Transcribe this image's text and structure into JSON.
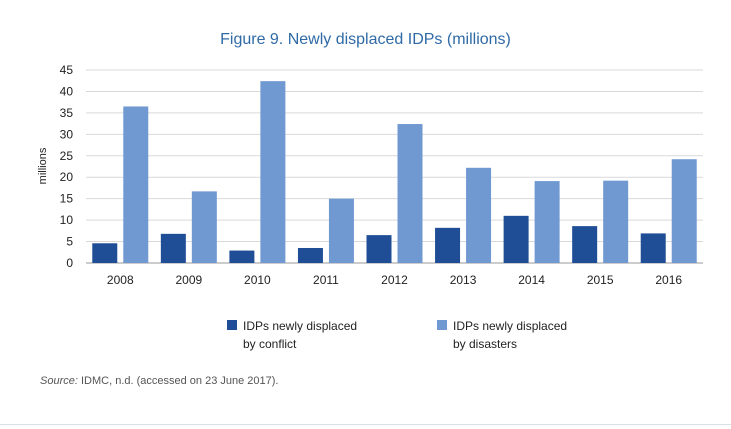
{
  "chart_data": {
    "type": "bar",
    "title": "Figure 9. Newly displaced IDPs (millions)",
    "ylabel": "millions",
    "xlabel": "",
    "ylim": [
      0,
      45
    ],
    "yticks": [
      0,
      5,
      10,
      15,
      20,
      25,
      30,
      35,
      40,
      45
    ],
    "grid": true,
    "legend_position": "bottom",
    "categories": [
      "2008",
      "2009",
      "2010",
      "2011",
      "2012",
      "2013",
      "2014",
      "2015",
      "2016"
    ],
    "series": [
      {
        "name": "IDPs newly displaced by conflict",
        "color": "#1f4e96",
        "values": [
          4.6,
          6.8,
          2.9,
          3.5,
          6.5,
          8.2,
          11.0,
          8.6,
          6.9
        ]
      },
      {
        "name": "IDPs newly displaced by disasters",
        "color": "#7199d1",
        "values": [
          36.5,
          16.7,
          42.4,
          15.0,
          32.4,
          22.2,
          19.1,
          19.2,
          24.2
        ]
      }
    ]
  },
  "legend": {
    "conflict_line1": "IDPs newly displaced",
    "conflict_line2": "by conflict",
    "disasters_line1": "IDPs newly displaced",
    "disasters_line2": "by disasters"
  },
  "source": {
    "label": "Source:",
    "text": "IDMC, n.d. (accessed on 23 June 2017)."
  }
}
